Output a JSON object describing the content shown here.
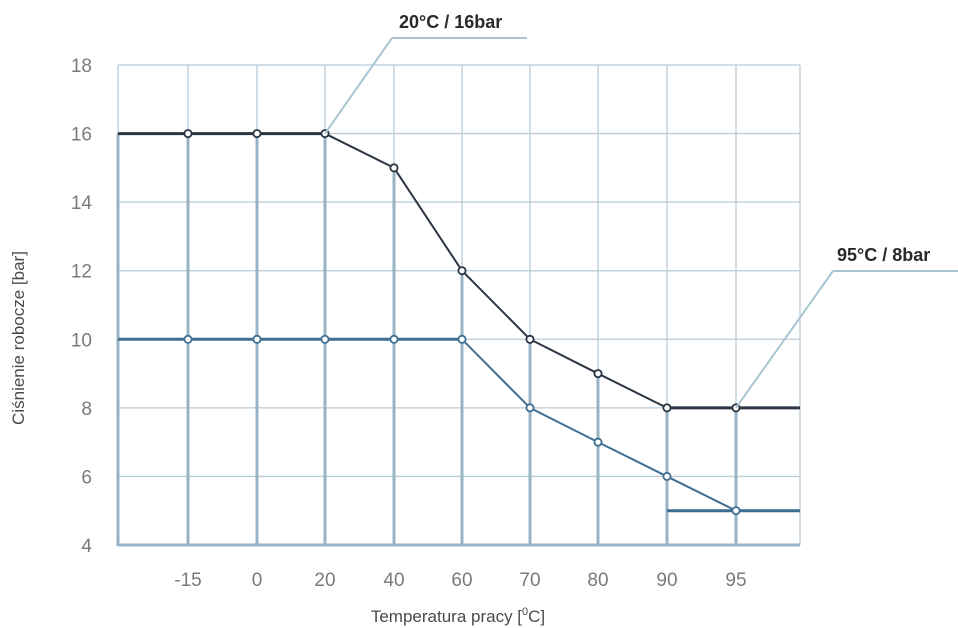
{
  "chart_data": {
    "type": "line",
    "title": "",
    "xlabel_main": "Temperatura pracy [",
    "xlabel_sup": "0",
    "xlabel_end": "C]",
    "ylabel": "Ciśnienie robocze [bar]",
    "x_categories": [
      "-15",
      "0",
      "20",
      "40",
      "60",
      "70",
      "80",
      "90",
      "95"
    ],
    "ylim": [
      4,
      18
    ],
    "yticks": [
      "4",
      "6",
      "8",
      "10",
      "12",
      "14",
      "16",
      "18"
    ],
    "grid": true,
    "series": [
      {
        "values": [
          16,
          16,
          16,
          15,
          12,
          10,
          9,
          8,
          8
        ],
        "color": "#2b3544"
      },
      {
        "values": [
          10,
          10,
          10,
          10,
          10,
          8,
          7,
          6,
          5
        ],
        "color": "#3f6e93"
      }
    ],
    "annotations": [
      {
        "text": "20°C / 16bar",
        "x": "20",
        "y": 16
      },
      {
        "text": "95°C / 8bar",
        "x": "95",
        "y": 8
      }
    ],
    "colors": {
      "grid": "#b9ccd7",
      "axis": "#98b3c4",
      "leader": "#a9c5d2"
    }
  }
}
